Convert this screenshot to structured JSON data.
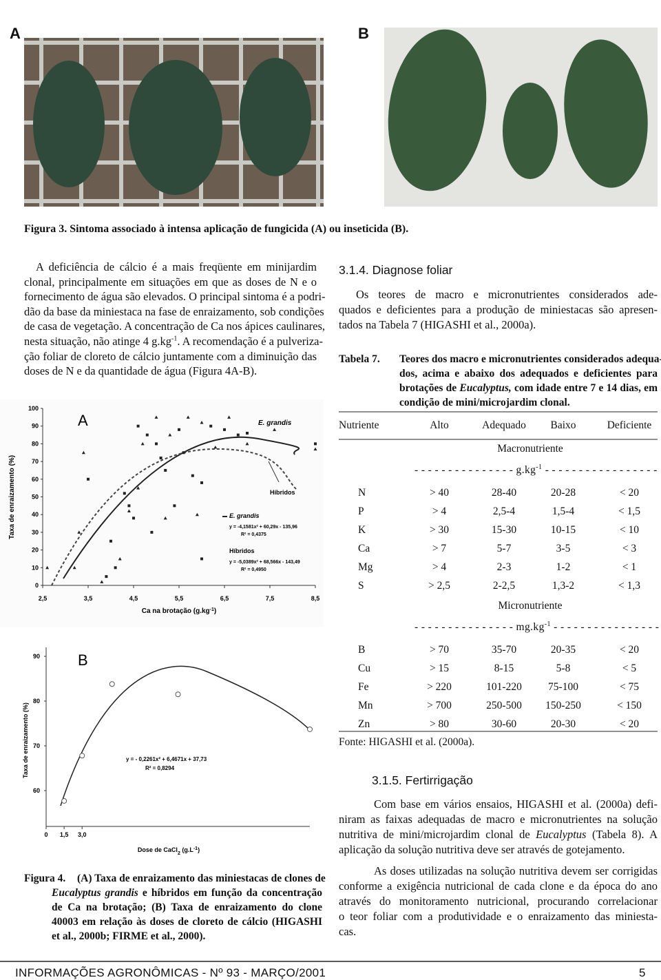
{
  "figure3": {
    "label_a": "A",
    "label_b": "B",
    "caption": "Figura 3. Sintoma associado à intensa aplicação de fungicida (A) ou inseticida (B)."
  },
  "col1": {
    "lines": [
      "A deficiência de cálcio é a mais freqüente em minijardim",
      "clonal, principalmente em situações em que as doses de N e o",
      "fornecimento de água são elevados. O principal sintoma é a podri-",
      "dão da base da miniestaca na fase de enraizamento, sob condições",
      "de casa de vegetação. A concentração de Ca nos ápices caulinares,",
      {
        "a": "nesta situação, não atinge 4 g.kg",
        "sup": "-1",
        "b": ". A recomendação é a pulveriza-"
      },
      "ção foliar de cloreto de cálcio juntamente com a diminuição das",
      "doses de N e da quantidade de água (Figura 4A-B)."
    ]
  },
  "figure4": {
    "a": {
      "type": "scatter",
      "panel": "A",
      "ylabel": "Taxa de enraizamento (%)",
      "xlabel": {
        "a": "Ca na brotação (g.kg",
        "sup": "-1",
        "b": ")"
      },
      "xlim": [
        2.5,
        8.5
      ],
      "ylim": [
        0,
        100
      ],
      "xticks": [
        {
          "value": 2.5,
          "label": "2,5"
        },
        {
          "value": 3.5,
          "label": "3,5"
        },
        {
          "value": 4.5,
          "label": "4,5"
        },
        {
          "value": 5.5,
          "label": "5,5"
        },
        {
          "value": 6.5,
          "label": "6,5"
        },
        {
          "value": 7.5,
          "label": "7,5"
        },
        {
          "value": 8.5,
          "label": "8,5"
        }
      ],
      "yticks": [
        0,
        10,
        20,
        30,
        40,
        50,
        60,
        70,
        80,
        90,
        100
      ],
      "annotations": [
        "E. grandis",
        "Híbridos"
      ],
      "series": [
        {
          "name": "E. grandis",
          "equation": "y = -4,1581x² + 60,29x - 135,96",
          "r2": "R² = 0,4375",
          "color": "#222222",
          "x": [
            3.5,
            4.3,
            4.4,
            4.5,
            4.6,
            4.8,
            5.0,
            5.1,
            5.2,
            5.5,
            5.6,
            5.8,
            6.0,
            6.2,
            6.5,
            6.8,
            7.0,
            8.5,
            4.0,
            3.9,
            4.1,
            4.9,
            5.4,
            6.0
          ],
          "values": [
            60,
            52,
            45,
            38,
            90,
            85,
            80,
            72,
            65,
            88,
            75,
            62,
            58,
            90,
            88,
            85,
            86,
            80,
            25,
            5,
            10,
            30,
            45,
            15
          ]
        },
        {
          "name": "Híbridos",
          "equation": "y = -5,0389x² + 68,566x - 143,49",
          "r2": "R² = 0,4950",
          "color": "#222222",
          "x": [
            2.6,
            3.2,
            3.3,
            3.8,
            4.2,
            4.4,
            4.7,
            5.0,
            5.3,
            5.7,
            6.0,
            6.3,
            6.6,
            7.0,
            7.6,
            8.5,
            4.6,
            5.9,
            3.4,
            5.2
          ],
          "values": [
            10,
            10,
            30,
            2,
            15,
            42,
            80,
            95,
            85,
            95,
            92,
            78,
            95,
            80,
            88,
            77,
            55,
            40,
            75,
            38
          ]
        }
      ]
    },
    "b": {
      "type": "scatter",
      "panel": "B",
      "ylabel": "Taxa de enraizamento (%)",
      "xlabel": {
        "a": "Dose de CaCl",
        "sub": "2",
        "b": " (g.L",
        "sup": "-1",
        "c": ")"
      },
      "xlim": [
        0,
        22
      ],
      "ylim": [
        52,
        92
      ],
      "xticks": [
        0,
        {
          "value": 1.5,
          "label": "1,5"
        },
        {
          "value": 3,
          "label": "3,0"
        }
      ],
      "yticks": [
        60,
        70,
        80,
        90
      ],
      "equation": "y = - 0,2261x² + 6,4671x + 37,73",
      "r2": "R² = 0,8294",
      "x": [
        1.5,
        3,
        5.5,
        11,
        22
      ],
      "values": [
        57.7,
        67.8,
        83.8,
        81.5,
        73.7
      ]
    },
    "caption": {
      "label": "Figura 4.",
      "lines": [
        "(A) Taxa de enraizamento das miniestacas de clones de",
        {
          "i": "Eucalyptus grandis",
          "b": " e híbridos em função da concentração"
        },
        "de Ca na brotação; (B) Taxa de enraizamento do clone",
        "40003 em relação às doses de cloreto de cálcio (HIGASHI",
        "et al., 2000b; FIRME et al., 2000)."
      ]
    }
  },
  "section314": {
    "heading": "3.1.4. Diagnose foliar",
    "lines": [
      "Os teores de macro e micronutrientes considerados ade-",
      "quados e deficientes para a produção de miniestacas são apresen-",
      "tados na Tabela 7 (HIGASHI et al., 2000a)."
    ]
  },
  "tabela7": {
    "label": "Tabela 7.",
    "lines": [
      "Teores dos macro e micronutrientes considerados adequa-",
      "dos, acima e abaixo dos adequados e deficientes para",
      {
        "a": "brotações de ",
        "i": "Eucalyptus,",
        "b": " com idade entre 7 e 14 dias, em"
      },
      "condição de mini/microjardim clonal."
    ],
    "header": [
      "Nutriente",
      "Alto",
      "Adequado",
      "Baixo",
      "Deficiente"
    ],
    "sections": [
      {
        "title": "Macronutriente",
        "unit": {
          "a": "- - - - - - - - - - - - - - - g.kg",
          "sup": "-1",
          "b": " - - - - - - - - - - - - - - - - -"
        },
        "rows": [
          [
            "N",
            "> 40",
            "28-40",
            "20-28",
            "< 20"
          ],
          [
            "P",
            "> 4",
            "2,5-4",
            "1,5-4",
            "< 1,5"
          ],
          [
            "K",
            "> 30",
            "15-30",
            "10-15",
            "< 10"
          ],
          [
            "Ca",
            "> 7",
            "5-7",
            "3-5",
            "< 3"
          ],
          [
            "Mg",
            "> 4",
            "2-3",
            "1-2",
            "< 1"
          ],
          [
            "S",
            "> 2,5",
            "2-2,5",
            "1,3-2",
            "< 1,3"
          ]
        ]
      },
      {
        "title": "Micronutriente",
        "unit": {
          "a": "- - - - - - - - - - - - - - - mg.kg",
          "sup": "-1",
          "b": " - - - - - - - - - - - - - - - -"
        },
        "rows": [
          [
            "B",
            "> 70",
            "35-70",
            "20-35",
            "< 20"
          ],
          [
            "Cu",
            "> 15",
            "8-15",
            "5-8",
            "< 5"
          ],
          [
            "Fe",
            "> 220",
            "101-220",
            "75-100",
            "< 75"
          ],
          [
            "Mn",
            "> 700",
            "250-500",
            "150-250",
            "< 150"
          ],
          [
            "Zn",
            "> 80",
            "30-60",
            "20-30",
            "< 20"
          ]
        ]
      }
    ],
    "source": "Fonte: HIGASHI et al. (2000a)."
  },
  "section315": {
    "heading": "3.1.5. Fertirrigação",
    "p1": [
      "Com base em vários ensaios, HIGASHI et al. (2000a) defi-",
      "niram as faixas adequadas de macro e micronutrientes na solução",
      {
        "a": "nutritiva de mini/microjardim clonal de ",
        "i": "Eucalyptus",
        "b": " (Tabela 8). A"
      },
      "aplicação da solução nutritiva deve ser através de gotejamento."
    ],
    "p2": [
      "As doses utilizadas na solução nutritiva devem ser corrigidas",
      "conforme a exigência nutricional de cada clone e da época do ano",
      "através do monitoramento nutricional, procurando correlacionar",
      "o teor foliar com a produtividade e o enraizamento das miniesta-",
      "cas."
    ]
  },
  "footer": {
    "title": "INFORMAÇÕES AGRONÔMICAS - Nº 93 - MARÇO/2001",
    "page": "5"
  }
}
